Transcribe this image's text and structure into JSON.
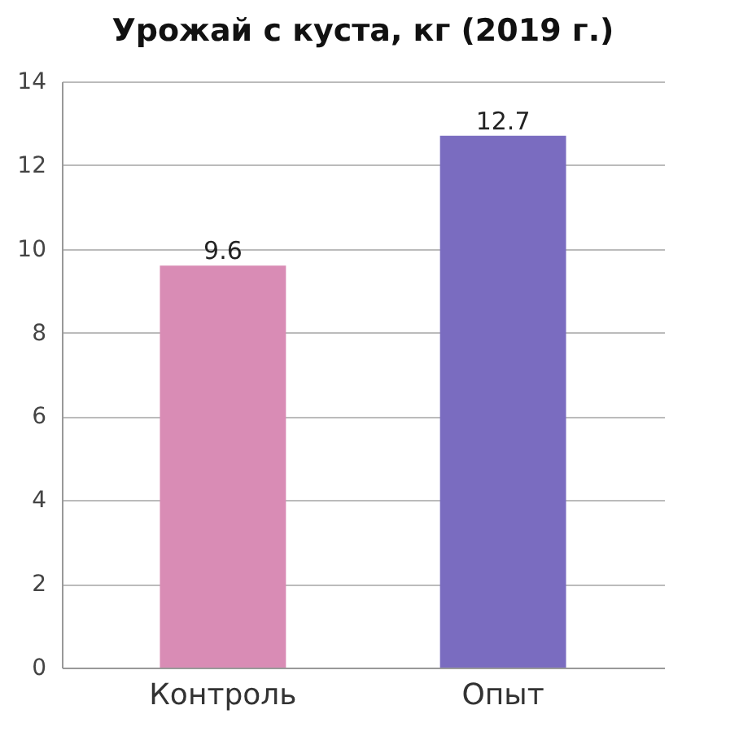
{
  "chart_data": {
    "type": "bar",
    "title": "Урожай с куста, кг (2019 г.)",
    "categories": [
      "Контроль",
      "Опыт"
    ],
    "values": [
      9.6,
      12.7
    ],
    "colors": [
      "#d98cb5",
      "#7a6cc0"
    ],
    "ylim": [
      0,
      14
    ],
    "yticks": [
      0,
      2,
      4,
      6,
      8,
      10,
      12,
      14
    ],
    "grid": "y",
    "data_labels": true
  }
}
